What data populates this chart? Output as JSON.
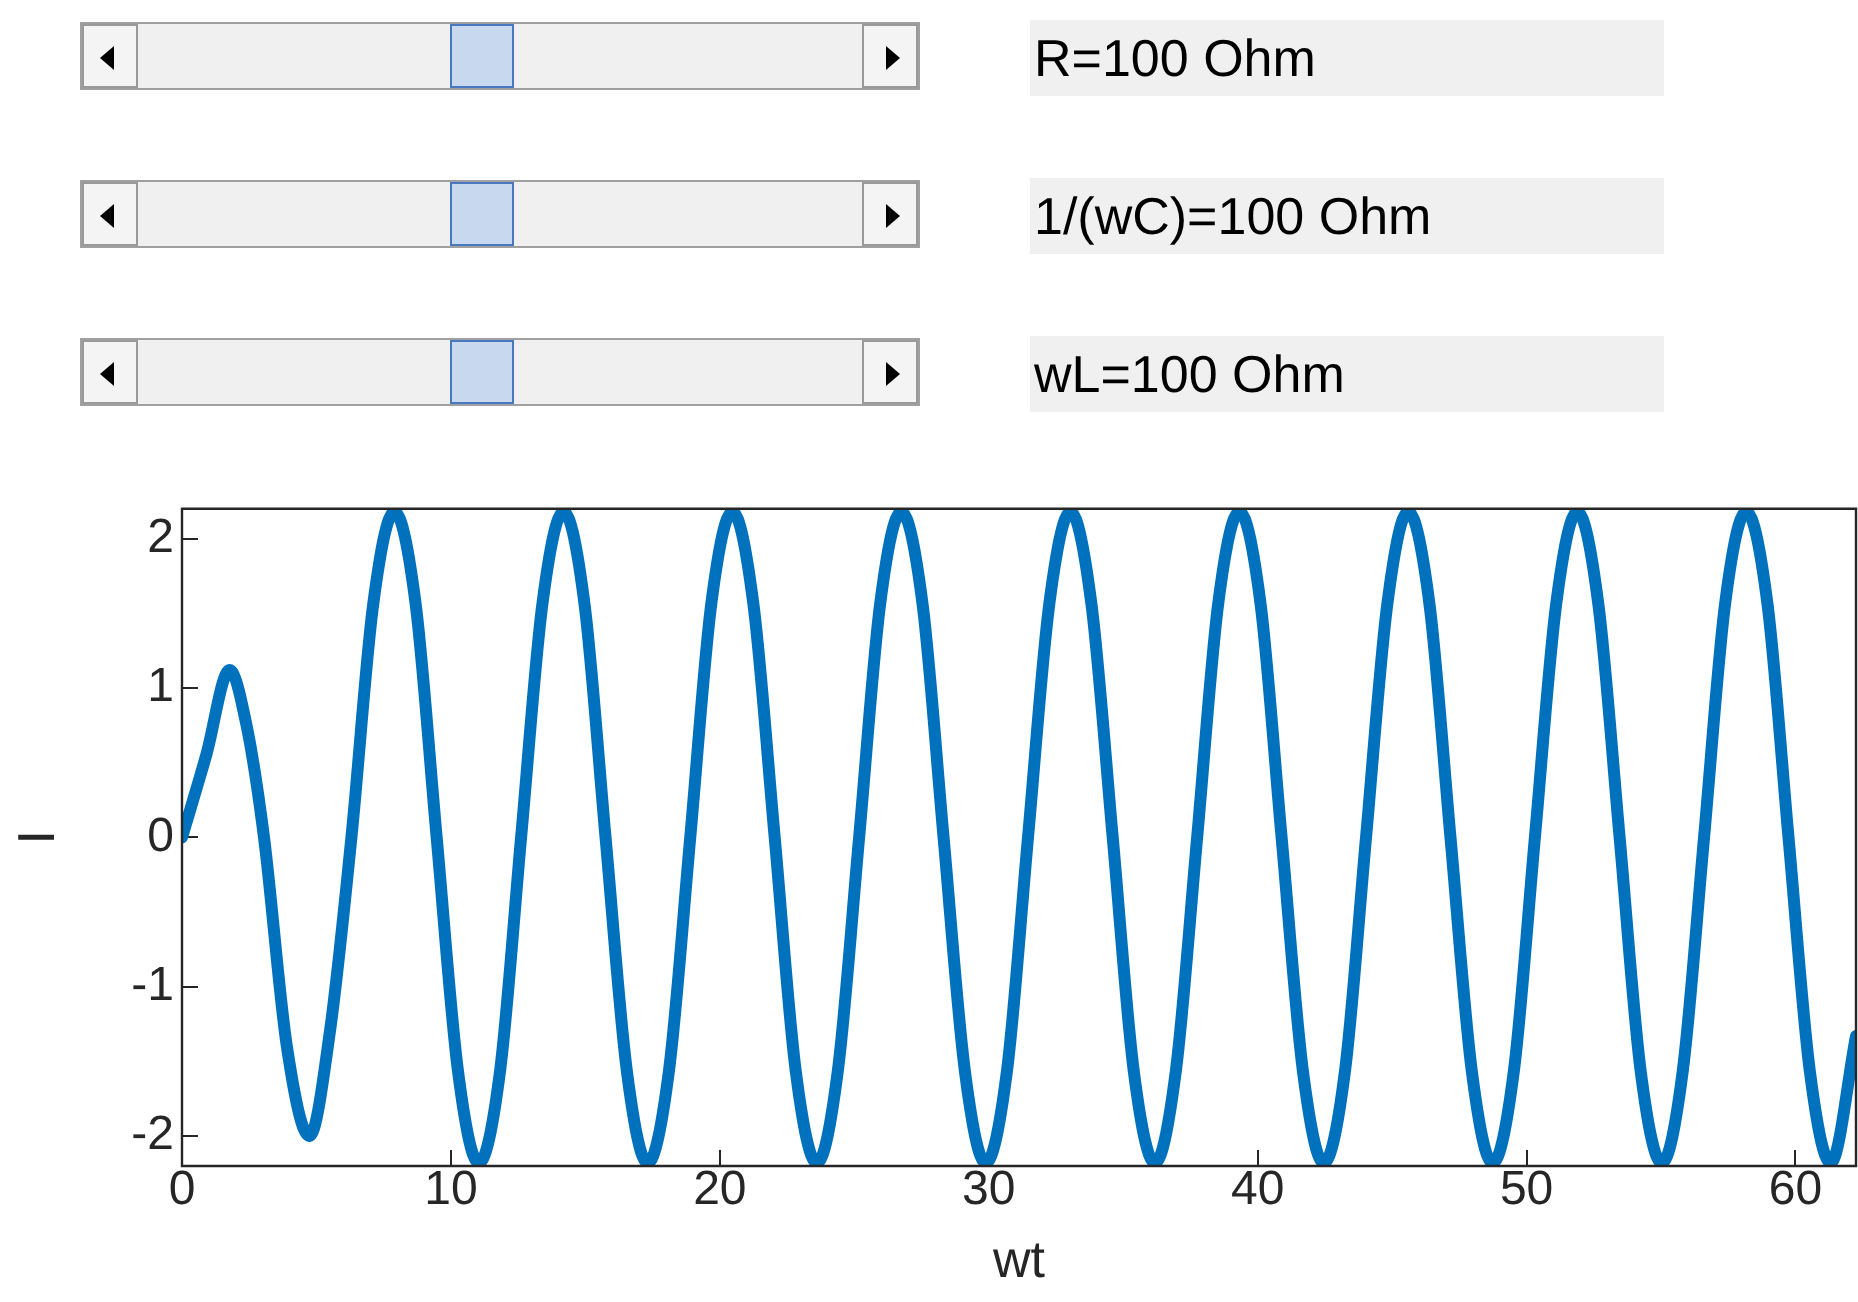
{
  "chart_data": {
    "type": "line",
    "xlabel": "wt",
    "ylabel": "I",
    "annotations": [
      "R=100 Ohm",
      "1/(wC)=100 Ohm",
      "wL=100 Ohm"
    ],
    "xlim": [
      0,
      62.25
    ],
    "xticks": [
      0,
      10,
      20,
      30,
      40,
      50,
      60
    ],
    "ylim": [
      -2.2,
      2.2
    ],
    "yticks": [
      -2,
      -1,
      0,
      1,
      2
    ],
    "grid": false,
    "legend": false,
    "marker": "none",
    "line_style": "solid",
    "series": [
      {
        "color": "#0072bd",
        "x": [
          0,
          0.9,
          1.77,
          2.4,
          3.05,
          3.9,
          4.74,
          5.5,
          6.3,
          7.11,
          7.9,
          8.69,
          9.47,
          10.26,
          11.04,
          11.83,
          12.61,
          13.4,
          14.19,
          14.97,
          15.75,
          16.54,
          17.32,
          18.11,
          18.9,
          19.68,
          20.47,
          21.25,
          22.04,
          22.82,
          23.61,
          24.39,
          25.18,
          25.96,
          26.75,
          27.54,
          28.32,
          29.11,
          29.89,
          30.68,
          31.46,
          32.25,
          33.04,
          33.82,
          34.61,
          35.39,
          36.18,
          36.96,
          37.75,
          38.53,
          39.32,
          40.11,
          40.89,
          41.68,
          42.46,
          43.25,
          44.03,
          44.82,
          45.6,
          46.39,
          47.17,
          47.96,
          48.74,
          49.53,
          50.31,
          51.1,
          51.89,
          52.67,
          53.46,
          54.24,
          55.03,
          55.81,
          56.6,
          57.38,
          58.17,
          58.96,
          59.74,
          60.53,
          61.31,
          62.25
        ],
        "values": [
          0,
          0.55,
          1.12,
          0.75,
          0,
          -1.4,
          -2,
          -1.3,
          0,
          1.56,
          2.18,
          1.56,
          0,
          -1.56,
          -2.18,
          -1.56,
          0,
          1.56,
          2.18,
          1.56,
          0,
          -1.56,
          -2.18,
          -1.56,
          0,
          1.56,
          2.18,
          1.56,
          0,
          -1.56,
          -2.18,
          -1.56,
          0,
          1.56,
          2.18,
          1.56,
          0,
          -1.56,
          -2.18,
          -1.56,
          0,
          1.56,
          2.18,
          1.56,
          0,
          -1.56,
          -2.18,
          -1.56,
          0,
          1.56,
          2.18,
          1.56,
          0,
          -1.56,
          -2.18,
          -1.56,
          0,
          1.56,
          2.18,
          1.56,
          0,
          -1.56,
          -2.18,
          -1.56,
          0,
          1.56,
          2.18,
          1.56,
          0,
          -1.56,
          -2.18,
          -1.56,
          0,
          1.56,
          2.18,
          1.56,
          0,
          -1.56,
          -2.18,
          -1.33
        ]
      }
    ]
  }
}
